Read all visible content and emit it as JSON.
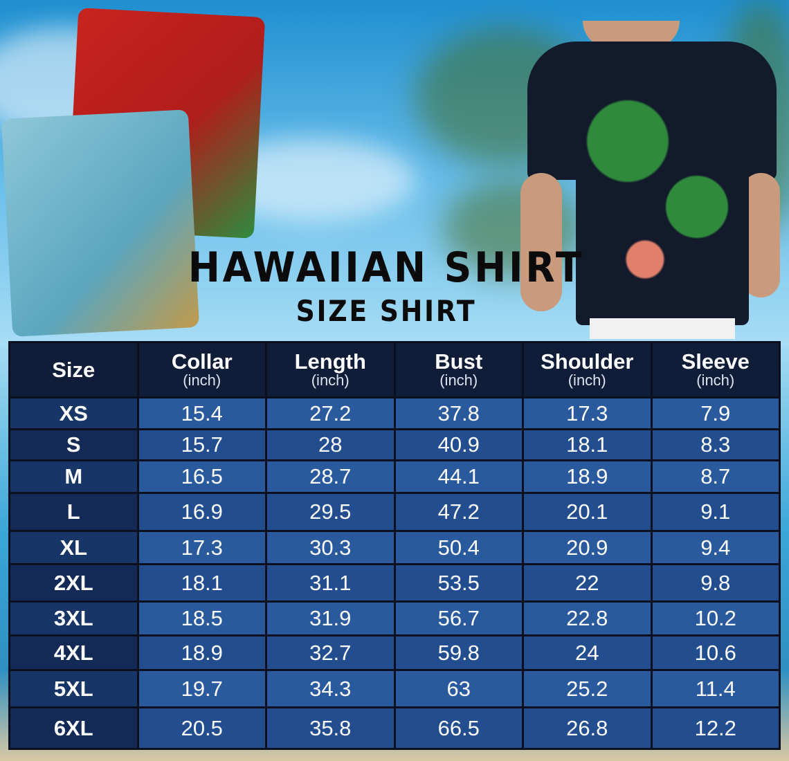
{
  "title": "HAWAIIAN SHIRT",
  "subtitle": "SIZE SHIRT",
  "colors": {
    "header_bg": "#101d38",
    "cell_bg": "#2a5a9e",
    "size_col_bg": "#173566",
    "title": "#0b0b0b"
  },
  "table": {
    "columns": [
      {
        "label": "Size",
        "unit": ""
      },
      {
        "label": "Collar",
        "unit": "(inch)"
      },
      {
        "label": "Length",
        "unit": "(inch)"
      },
      {
        "label": "Bust",
        "unit": "(inch)"
      },
      {
        "label": "Shoulder",
        "unit": "(inch)"
      },
      {
        "label": "Sleeve",
        "unit": "(inch)"
      }
    ],
    "rows": [
      [
        "XS",
        "15.4",
        "27.2",
        "37.8",
        "17.3",
        "7.9"
      ],
      [
        "S",
        "15.7",
        "28",
        "40.9",
        "18.1",
        "8.3"
      ],
      [
        "M",
        "16.5",
        "28.7",
        "44.1",
        "18.9",
        "8.7"
      ],
      [
        "L",
        "16.9",
        "29.5",
        "47.2",
        "20.1",
        "9.1"
      ],
      [
        "XL",
        "17.3",
        "30.3",
        "50.4",
        "20.9",
        "9.4"
      ],
      [
        "2XL",
        "18.1",
        "31.1",
        "53.5",
        "22",
        "9.8"
      ],
      [
        "3XL",
        "18.5",
        "31.9",
        "56.7",
        "22.8",
        "10.2"
      ],
      [
        "4XL",
        "18.9",
        "32.7",
        "59.8",
        "24",
        "10.6"
      ],
      [
        "5XL",
        "19.7",
        "34.3",
        "63",
        "25.2",
        "11.4"
      ],
      [
        "6XL",
        "20.5",
        "35.8",
        "66.5",
        "26.8",
        "12.2"
      ]
    ]
  }
}
